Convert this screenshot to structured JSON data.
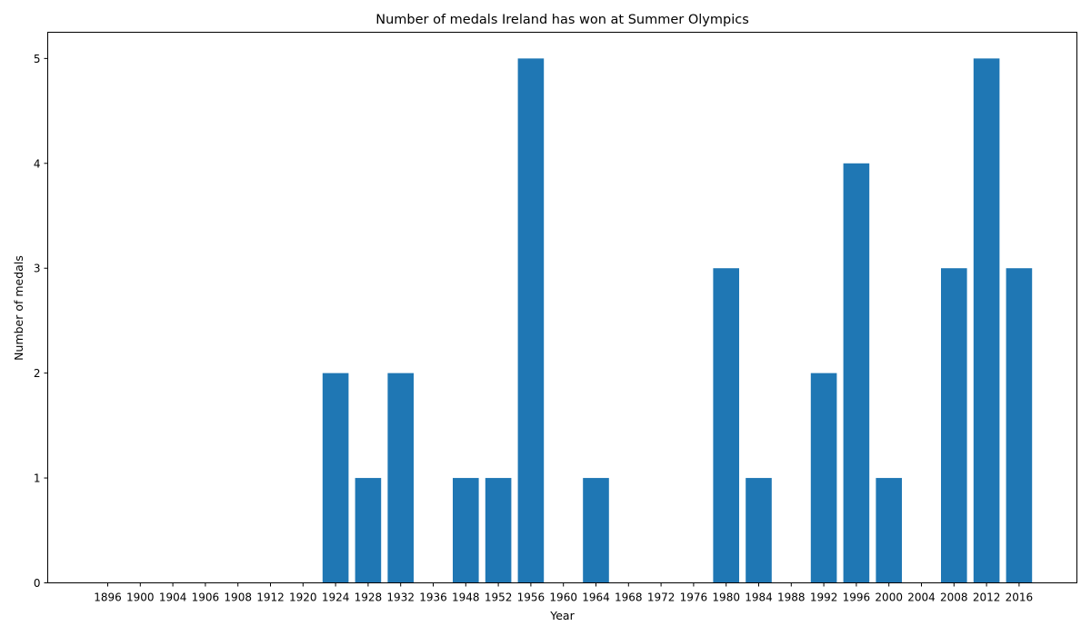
{
  "chart_data": {
    "type": "bar",
    "title": "Number of medals Ireland has won at Summer Olympics",
    "xlabel": "Year",
    "ylabel": "Number of medals",
    "categories": [
      "1896",
      "1900",
      "1904",
      "1906",
      "1908",
      "1912",
      "1920",
      "1924",
      "1928",
      "1932",
      "1936",
      "1948",
      "1952",
      "1956",
      "1960",
      "1964",
      "1968",
      "1972",
      "1976",
      "1980",
      "1984",
      "1988",
      "1992",
      "1996",
      "2000",
      "2004",
      "2008",
      "2012",
      "2016"
    ],
    "values": [
      0,
      0,
      0,
      0,
      0,
      0,
      0,
      2,
      1,
      2,
      0,
      1,
      1,
      5,
      0,
      1,
      0,
      0,
      0,
      3,
      1,
      0,
      2,
      4,
      1,
      0,
      3,
      5,
      3
    ],
    "ylim": [
      0,
      5.25
    ],
    "yticks": [
      "0",
      "1",
      "2",
      "3",
      "4",
      "5"
    ],
    "grid": false,
    "bar_color": "#1f77b4"
  }
}
